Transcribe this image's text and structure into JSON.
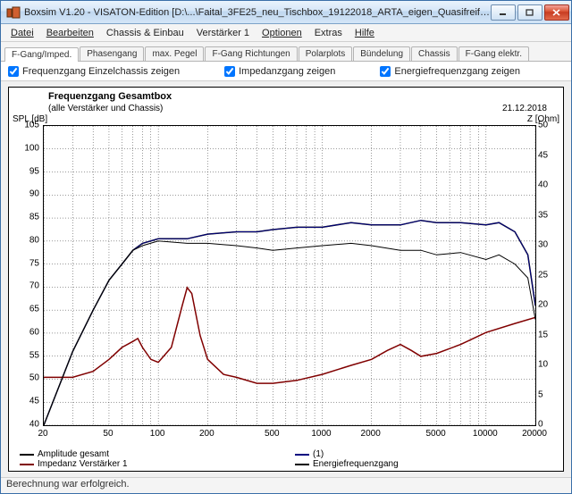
{
  "window": {
    "title": "Boxsim V1.20 - VISATON-Edition  [D:\\...\\Faital_3FE25_neu_Tischbox_19122018_ARTA_eigen_Quasifreifeld_Import_Weiche4_shelving.B...",
    "min": "—",
    "max": "▭",
    "close": "✕"
  },
  "menu": {
    "m0": "Datei",
    "m1": "Bearbeiten",
    "m2": "Chassis & Einbau",
    "m3": "Verstärker 1",
    "m4": "Optionen",
    "m5": "Extras",
    "m6": "Hilfe"
  },
  "tabs": {
    "t0": "F-Gang/Imped.",
    "t1": "Phasengang",
    "t2": "max. Pegel",
    "t3": "F-Gang Richtungen",
    "t4": "Polarplots",
    "t5": "Bündelung",
    "t6": "Chassis",
    "t7": "F-Gang elektr."
  },
  "checks": {
    "c0": "Frequenzgang Einzelchassis zeigen",
    "c1": "Impedanzgang zeigen",
    "c2": "Energiefrequenzgang zeigen"
  },
  "chart": {
    "title": "Frequenzgang Gesamtbox",
    "sub": "(alle Verstärker und Chassis)",
    "date": "21.12.2018",
    "ylabel_l": "SPL [dB]",
    "ylabel_r": "Z [Ohm]",
    "ylim_l": [
      40,
      105
    ],
    "ytick_step_l": 5,
    "ylim_r": [
      0,
      50
    ],
    "yticks_r": [
      0,
      5,
      10,
      15,
      20,
      25,
      30,
      35,
      40,
      45,
      50
    ],
    "xlim": [
      20,
      20000
    ],
    "xticks": [
      20,
      50,
      100,
      200,
      500,
      1000,
      2000,
      5000,
      10000,
      20000
    ],
    "grid_color": "#000",
    "bg": "#ffffff",
    "series": [
      {
        "name": "Amplitude gesamt",
        "color": "#000000",
        "width": 1.5,
        "pts": [
          [
            20,
            40
          ],
          [
            30,
            56
          ],
          [
            40,
            65
          ],
          [
            50,
            71.5
          ],
          [
            60,
            75
          ],
          [
            70,
            78
          ],
          [
            80,
            79.5
          ],
          [
            100,
            80.5
          ],
          [
            150,
            80.5
          ],
          [
            200,
            81.5
          ],
          [
            300,
            82
          ],
          [
            400,
            82
          ],
          [
            500,
            82.5
          ],
          [
            700,
            83
          ],
          [
            1000,
            83
          ],
          [
            1500,
            84
          ],
          [
            2000,
            83.5
          ],
          [
            3000,
            83.5
          ],
          [
            4000,
            84.5
          ],
          [
            5000,
            84
          ],
          [
            7000,
            84
          ],
          [
            10000,
            83.5
          ],
          [
            12000,
            84
          ],
          [
            15000,
            82
          ],
          [
            18000,
            77
          ],
          [
            20000,
            66
          ]
        ]
      },
      {
        "name": "(1)",
        "color": "#000080",
        "width": 1,
        "pts": [
          [
            20,
            40
          ],
          [
            30,
            56
          ],
          [
            40,
            65
          ],
          [
            50,
            71.5
          ],
          [
            60,
            75
          ],
          [
            70,
            78
          ],
          [
            80,
            79.5
          ],
          [
            100,
            80.5
          ],
          [
            150,
            80.5
          ],
          [
            200,
            81.5
          ],
          [
            300,
            82
          ],
          [
            400,
            82
          ],
          [
            500,
            82.5
          ],
          [
            700,
            83
          ],
          [
            1000,
            83
          ],
          [
            1500,
            84
          ],
          [
            2000,
            83.5
          ],
          [
            3000,
            83.5
          ],
          [
            4000,
            84.5
          ],
          [
            5000,
            84
          ],
          [
            7000,
            84
          ],
          [
            10000,
            83.5
          ],
          [
            12000,
            84
          ],
          [
            15000,
            82
          ],
          [
            18000,
            77
          ],
          [
            20000,
            66
          ]
        ]
      },
      {
        "name": "Impedanz Verstärker 1",
        "color": "#800000",
        "width": 1.5,
        "axis": "r",
        "pts": [
          [
            20,
            8
          ],
          [
            30,
            8
          ],
          [
            40,
            9
          ],
          [
            50,
            11
          ],
          [
            60,
            13
          ],
          [
            70,
            14
          ],
          [
            75,
            14.5
          ],
          [
            80,
            13
          ],
          [
            90,
            11
          ],
          [
            100,
            10.5
          ],
          [
            120,
            13
          ],
          [
            140,
            20
          ],
          [
            150,
            23
          ],
          [
            160,
            22
          ],
          [
            180,
            15
          ],
          [
            200,
            11
          ],
          [
            250,
            8.5
          ],
          [
            300,
            8
          ],
          [
            400,
            7
          ],
          [
            500,
            7
          ],
          [
            700,
            7.5
          ],
          [
            1000,
            8.5
          ],
          [
            1500,
            10
          ],
          [
            2000,
            11
          ],
          [
            2500,
            12.5
          ],
          [
            3000,
            13.5
          ],
          [
            3500,
            12.5
          ],
          [
            4000,
            11.5
          ],
          [
            5000,
            12
          ],
          [
            7000,
            13.5
          ],
          [
            10000,
            15.5
          ],
          [
            15000,
            17
          ],
          [
            20000,
            18
          ]
        ]
      },
      {
        "name": "Energiefrequenzgang",
        "color": "#000000",
        "width": 1,
        "pts": [
          [
            20,
            40
          ],
          [
            30,
            56
          ],
          [
            40,
            65
          ],
          [
            50,
            71.5
          ],
          [
            60,
            75
          ],
          [
            70,
            78
          ],
          [
            80,
            79
          ],
          [
            100,
            80
          ],
          [
            150,
            79.5
          ],
          [
            200,
            79.5
          ],
          [
            300,
            79
          ],
          [
            400,
            78.5
          ],
          [
            500,
            78
          ],
          [
            700,
            78.5
          ],
          [
            1000,
            79
          ],
          [
            1500,
            79.5
          ],
          [
            2000,
            79
          ],
          [
            3000,
            78
          ],
          [
            4000,
            78
          ],
          [
            5000,
            77
          ],
          [
            7000,
            77.5
          ],
          [
            10000,
            76
          ],
          [
            12000,
            77
          ],
          [
            15000,
            75
          ],
          [
            18000,
            72
          ],
          [
            20000,
            63
          ]
        ]
      }
    ],
    "legend": [
      {
        "label": "Amplitude gesamt",
        "color": "#000000"
      },
      {
        "label": "(1)",
        "color": "#000080"
      },
      {
        "label": "Impedanz Verstärker 1",
        "color": "#800000"
      },
      {
        "label": "Energiefrequenzgang",
        "color": "#000000"
      }
    ]
  },
  "status": "Berechnung war erfolgreich."
}
